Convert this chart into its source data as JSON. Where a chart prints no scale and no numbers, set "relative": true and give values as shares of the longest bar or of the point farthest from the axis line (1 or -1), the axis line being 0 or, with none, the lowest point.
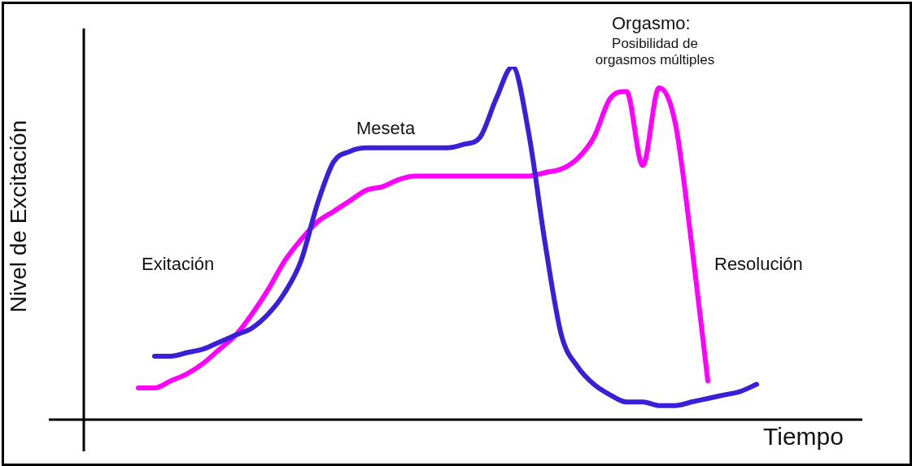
{
  "chart_data": {
    "type": "line",
    "relative": true,
    "marker": "none",
    "xlabel": "Tiempo",
    "ylabel": "Nivel de Excitación",
    "annotations": [
      "Exitación",
      "Meseta",
      "Orgasmo:",
      "Posibilidad de orgasmos múltiples",
      "Resolución"
    ],
    "categories": [
      null,
      null,
      null,
      null,
      null,
      null,
      null,
      null,
      null,
      null,
      null,
      null,
      null,
      null,
      null,
      null,
      null,
      null,
      null,
      null,
      null,
      null,
      null,
      null,
      null,
      null,
      null,
      null,
      null,
      null,
      null,
      null,
      null,
      null,
      null,
      null,
      null,
      null,
      null
    ],
    "series": [
      {
        "color": "#3a1fd8",
        "values": [
          null,
          0.18,
          0.18,
          0.19,
          0.2,
          0.22,
          0.24,
          0.26,
          0.3,
          0.36,
          0.45,
          0.61,
          0.73,
          0.76,
          0.77,
          0.77,
          0.77,
          0.77,
          0.77,
          0.77,
          0.78,
          0.8,
          0.91,
          1,
          0.81,
          0.5,
          0.24,
          0.15,
          0.1,
          0.07,
          0.05,
          0.05,
          0.04,
          0.04,
          0.05,
          0.06,
          0.07,
          0.08,
          0.1
        ]
      },
      {
        "color": "#ff00ff",
        "values": [
          0.09,
          0.09,
          0.11,
          0.13,
          0.16,
          0.2,
          0.24,
          0.3,
          0.37,
          0.45,
          0.51,
          0.56,
          0.59,
          0.62,
          0.65,
          0.66,
          0.68,
          0.69,
          0.69,
          0.69,
          0.69,
          0.69,
          0.69,
          0.69,
          0.69,
          0.7,
          0.71,
          0.74,
          0.8,
          0.91,
          0.93,
          0.72,
          0.94,
          0.84,
          0.5,
          0.11,
          null,
          null,
          null
        ]
      }
    ]
  }
}
